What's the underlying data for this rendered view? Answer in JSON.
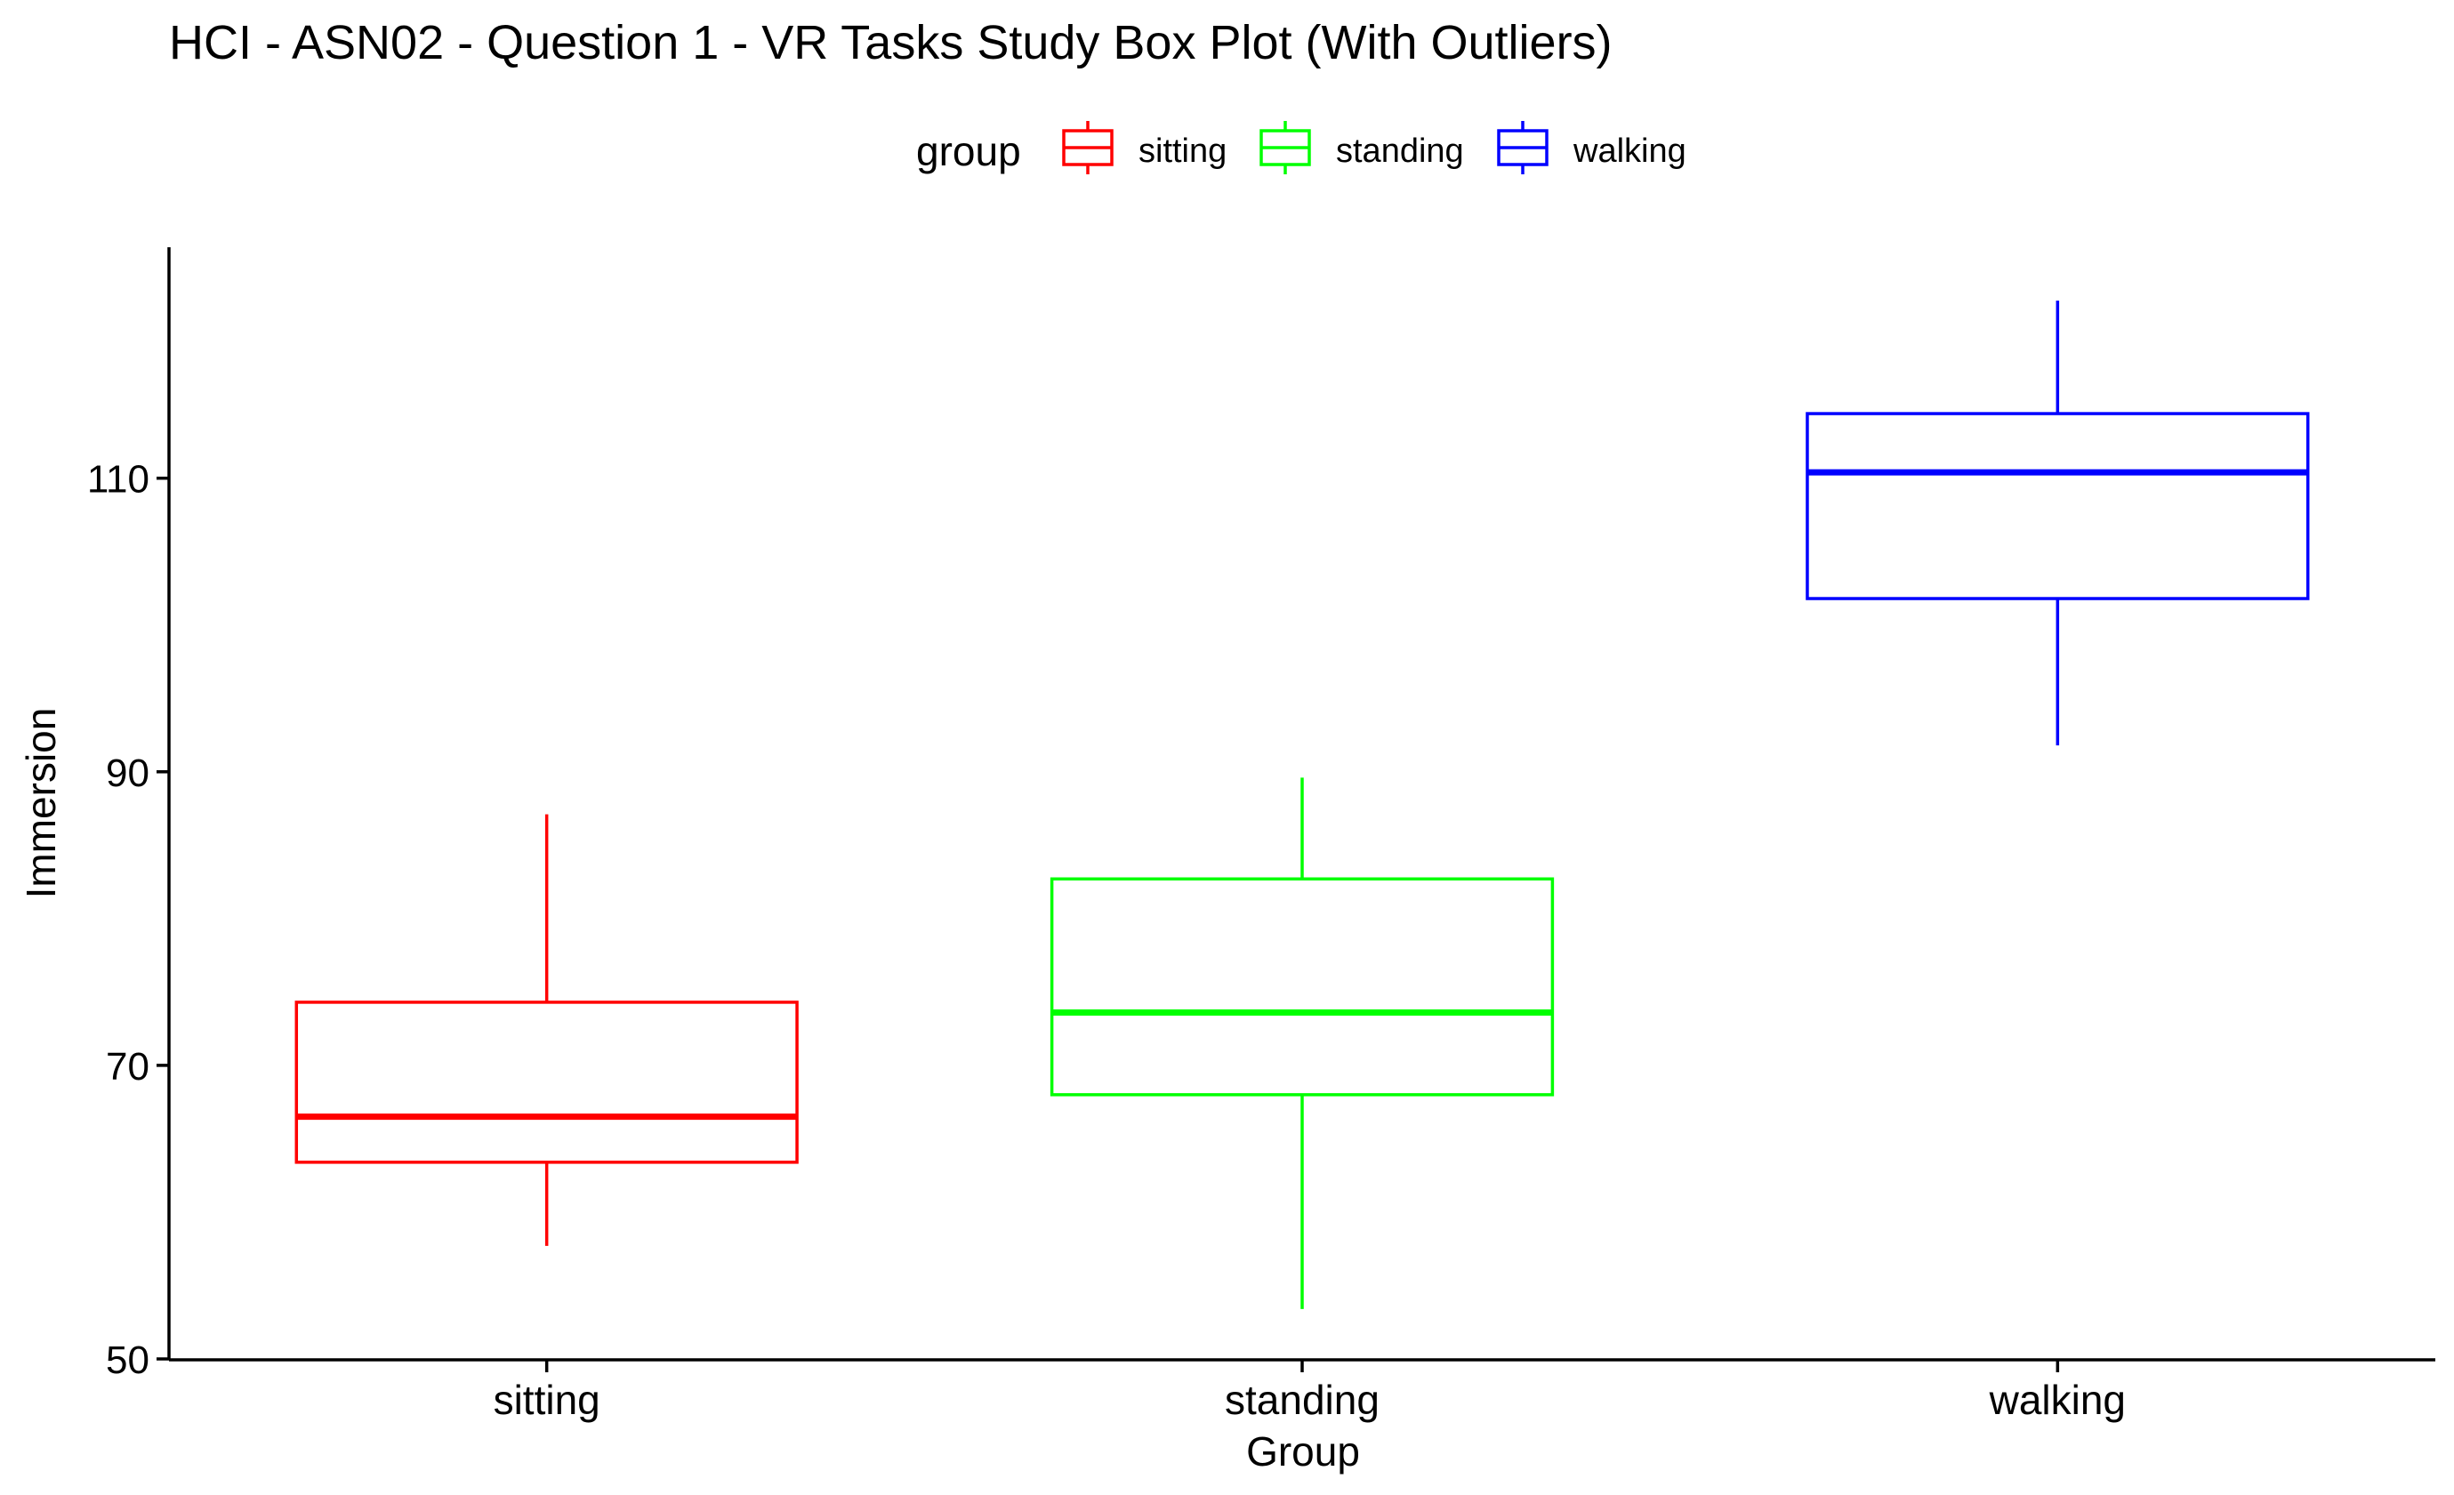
{
  "chart_data": {
    "type": "box",
    "title": "HCI - ASN02 - Question 1 - VR Tasks Study Box Plot (With Outliers)",
    "xlabel": "Group",
    "ylabel": "Immersion",
    "categories": [
      "sitting",
      "standing",
      "walking"
    ],
    "ylim": [
      50,
      125
    ],
    "yticks": [
      50,
      70,
      90,
      110
    ],
    "grid": false,
    "legend": {
      "position": "top",
      "title": "group",
      "entries": [
        "sitting",
        "standing",
        "walking"
      ]
    },
    "series": [
      {
        "name": "sitting",
        "color": "#ff0000",
        "min": 57.7,
        "q1": 63.4,
        "median": 66.5,
        "q3": 74.3,
        "max": 87.1
      },
      {
        "name": "standing",
        "color": "#00ff00",
        "min": 53.4,
        "q1": 68.0,
        "median": 73.6,
        "q3": 82.7,
        "max": 89.6
      },
      {
        "name": "walking",
        "color": "#0000ff",
        "min": 91.8,
        "q1": 101.8,
        "median": 110.4,
        "q3": 114.4,
        "max": 122.1
      }
    ]
  }
}
